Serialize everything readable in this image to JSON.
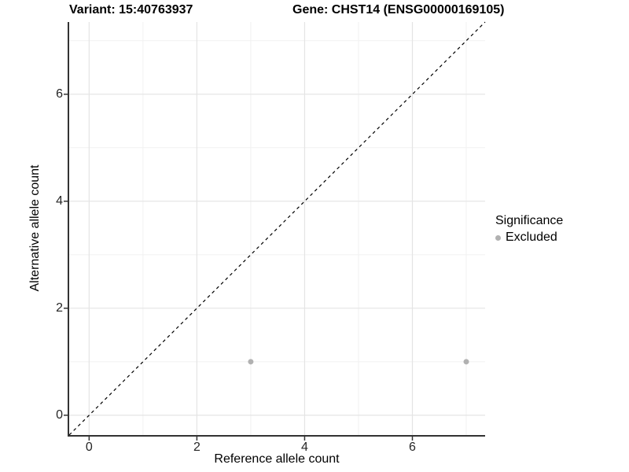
{
  "titles": {
    "left": "Variant: 15:40763937",
    "right": "Gene: CHST14 (ENSG00000169105)"
  },
  "chart_data": {
    "type": "scatter",
    "xlabel": "Reference allele count",
    "ylabel": "Alternative allele count",
    "xticks": [
      0,
      2,
      4,
      6
    ],
    "yticks": [
      0,
      2,
      4,
      6
    ],
    "minor_xticks": [
      1,
      3,
      5,
      7
    ],
    "minor_yticks": [
      1,
      3,
      5,
      7
    ],
    "xlim": [
      -0.37,
      7.35
    ],
    "ylim": [
      -0.37,
      7.35
    ],
    "grid": true,
    "series": [
      {
        "name": "Excluded",
        "color": "#b1b1b1",
        "points": [
          [
            3,
            1
          ],
          [
            7,
            1
          ]
        ]
      }
    ],
    "reference_line": {
      "type": "identity",
      "style": "dashed",
      "color": "#000000"
    },
    "legend": {
      "title": "Significance",
      "position": "right",
      "items": [
        {
          "label": "Excluded",
          "color": "#b1b1b1"
        }
      ]
    }
  },
  "colors": {
    "background": "#ffffff",
    "grid_major": "#e4e4e4",
    "grid_minor": "#f1f1f1",
    "axis_line": "#333333",
    "tick_text": "#262626",
    "title_text": "#000000"
  }
}
